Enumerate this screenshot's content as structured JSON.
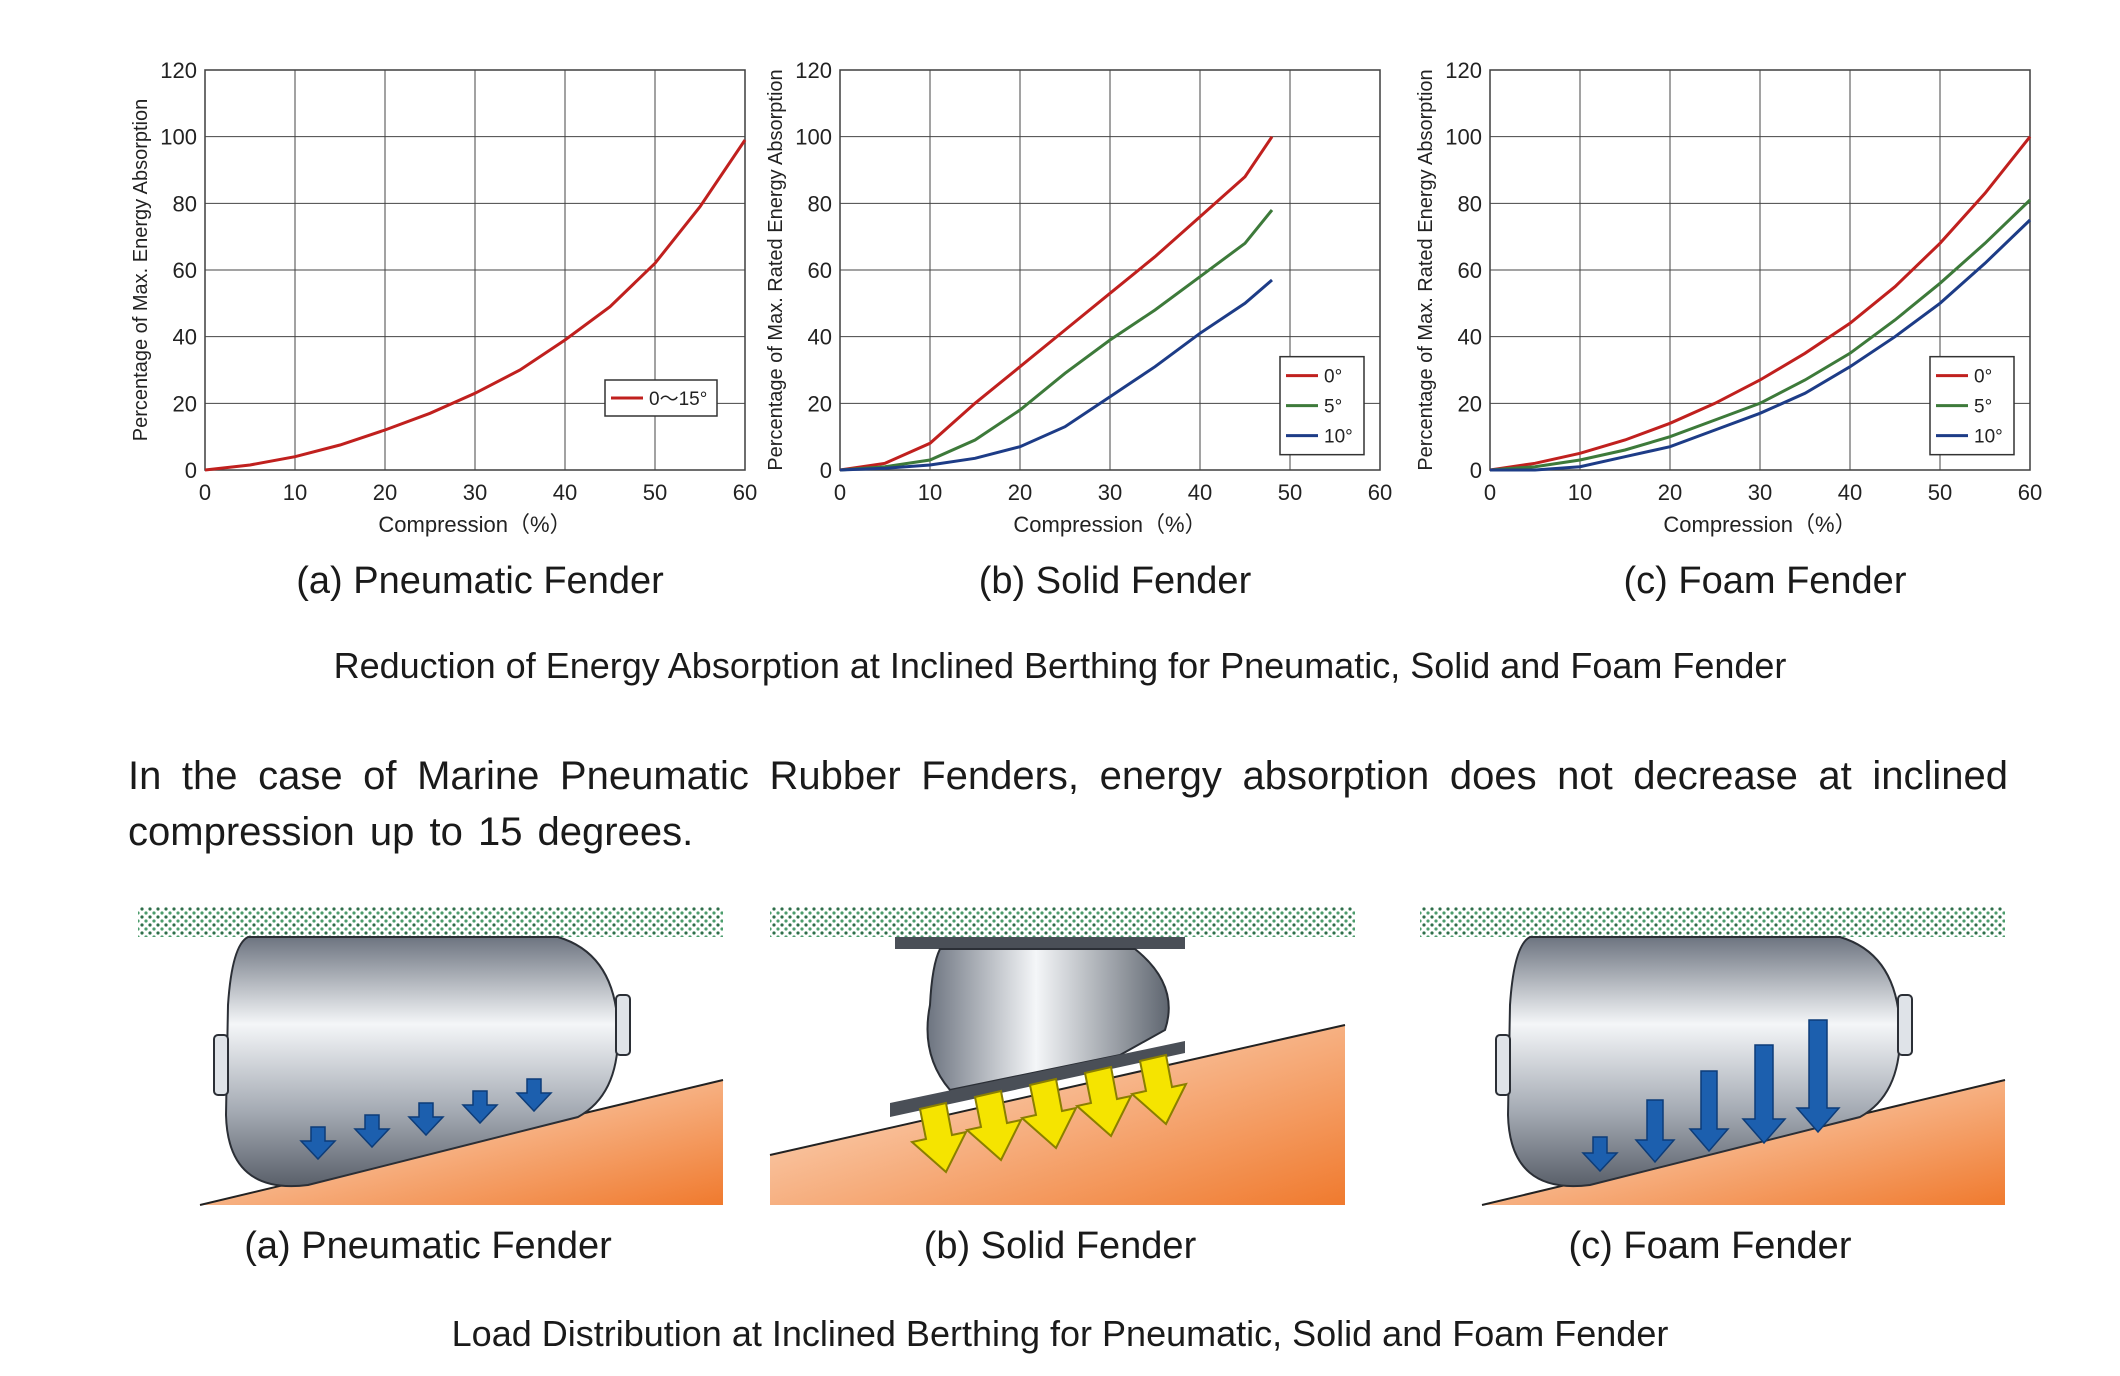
{
  "figure_top": {
    "title": "Reduction of Energy Absorption at Inclined Berthing for Pneumatic, Solid and Foam Fender"
  },
  "chart_data": [
    {
      "type": "line",
      "caption": "(a) Pneumatic Fender",
      "xlabel": "Compression（%）",
      "ylabel": "Percentage of Max. Energy Absorption",
      "xlim": [
        0,
        60
      ],
      "ylim": [
        0,
        120
      ],
      "xticks": [
        "0",
        "10",
        "20",
        "30",
        "40",
        "50",
        "60"
      ],
      "yticks": [
        "0",
        "20",
        "40",
        "60",
        "80",
        "100",
        "120"
      ],
      "grid": true,
      "legend": "right",
      "series": [
        {
          "name": "0～15°",
          "color": "#c0201e",
          "points": [
            [
              0,
              0
            ],
            [
              5,
              1.5
            ],
            [
              10,
              4
            ],
            [
              15,
              7.5
            ],
            [
              20,
              12
            ],
            [
              25,
              17
            ],
            [
              30,
              23
            ],
            [
              35,
              30
            ],
            [
              40,
              39
            ],
            [
              45,
              49
            ],
            [
              50,
              62
            ],
            [
              55,
              79
            ],
            [
              60,
              99
            ]
          ]
        }
      ]
    },
    {
      "type": "line",
      "caption": "(b) Solid Fender",
      "xlabel": "Compression（%）",
      "ylabel": "Percentage of Max. Rated Energy Absorption",
      "xlim": [
        0,
        60
      ],
      "ylim": [
        0,
        120
      ],
      "xticks": [
        "0",
        "10",
        "20",
        "30",
        "40",
        "50",
        "60"
      ],
      "yticks": [
        "0",
        "20",
        "40",
        "60",
        "80",
        "100",
        "120"
      ],
      "grid": true,
      "legend": "right",
      "series": [
        {
          "name": "0°",
          "color": "#c0201e",
          "points": [
            [
              0,
              0
            ],
            [
              5,
              2
            ],
            [
              10,
              8
            ],
            [
              15,
              20
            ],
            [
              20,
              31
            ],
            [
              25,
              42
            ],
            [
              30,
              53
            ],
            [
              35,
              64
            ],
            [
              40,
              76
            ],
            [
              45,
              88
            ],
            [
              48,
              100
            ]
          ]
        },
        {
          "name": "5°",
          "color": "#3d7a3a",
          "points": [
            [
              0,
              0
            ],
            [
              5,
              1
            ],
            [
              10,
              3
            ],
            [
              15,
              9
            ],
            [
              20,
              18
            ],
            [
              25,
              29
            ],
            [
              30,
              39
            ],
            [
              35,
              48
            ],
            [
              40,
              58
            ],
            [
              45,
              68
            ],
            [
              48,
              78
            ]
          ]
        },
        {
          "name": "10°",
          "color": "#1d3c87",
          "points": [
            [
              0,
              0
            ],
            [
              5,
              0.5
            ],
            [
              10,
              1.5
            ],
            [
              15,
              3.5
            ],
            [
              20,
              7
            ],
            [
              25,
              13
            ],
            [
              30,
              22
            ],
            [
              35,
              31
            ],
            [
              40,
              41
            ],
            [
              45,
              50
            ],
            [
              48,
              57
            ]
          ]
        }
      ]
    },
    {
      "type": "line",
      "caption": "(c) Foam Fender",
      "xlabel": "Compression（%）",
      "ylabel": "Percentage of Max. Rated Energy Absorption",
      "xlim": [
        0,
        60
      ],
      "ylim": [
        0,
        120
      ],
      "xticks": [
        "0",
        "10",
        "20",
        "30",
        "40",
        "50",
        "60"
      ],
      "yticks": [
        "0",
        "20",
        "40",
        "60",
        "80",
        "100",
        "120"
      ],
      "grid": true,
      "legend": "right",
      "series": [
        {
          "name": "0°",
          "color": "#c0201e",
          "points": [
            [
              0,
              0
            ],
            [
              5,
              2
            ],
            [
              10,
              5
            ],
            [
              15,
              9
            ],
            [
              20,
              14
            ],
            [
              25,
              20
            ],
            [
              30,
              27
            ],
            [
              35,
              35
            ],
            [
              40,
              44
            ],
            [
              45,
              55
            ],
            [
              50,
              68
            ],
            [
              55,
              83
            ],
            [
              60,
              100
            ]
          ]
        },
        {
          "name": "5°",
          "color": "#3d7a3a",
          "points": [
            [
              0,
              0
            ],
            [
              5,
              1
            ],
            [
              10,
              3
            ],
            [
              15,
              6
            ],
            [
              20,
              10
            ],
            [
              25,
              15
            ],
            [
              30,
              20
            ],
            [
              35,
              27
            ],
            [
              40,
              35
            ],
            [
              45,
              45
            ],
            [
              50,
              56
            ],
            [
              55,
              68
            ],
            [
              60,
              81
            ]
          ]
        },
        {
          "name": "10°",
          "color": "#1d3c87",
          "points": [
            [
              0,
              0
            ],
            [
              5,
              0
            ],
            [
              10,
              1
            ],
            [
              15,
              4
            ],
            [
              20,
              7
            ],
            [
              25,
              12
            ],
            [
              30,
              17
            ],
            [
              35,
              23
            ],
            [
              40,
              31
            ],
            [
              45,
              40
            ],
            [
              50,
              50
            ],
            [
              55,
              62
            ],
            [
              60,
              75
            ]
          ]
        }
      ]
    }
  ],
  "paragraph": "In the case of  Marine  Pneumatic Rubber Fenders, energy absorption does not decrease at inclined compression up to 15 degrees.",
  "figure_bottom": {
    "title": "Load Distribution at Inclined Berthing for Pneumatic, Solid and Foam Fender",
    "captions": [
      "(a) Pneumatic Fender",
      "(b) Solid Fender",
      "(c) Foam Fender"
    ],
    "colors": {
      "pneumatic_arrow": "#1c5fae",
      "solid_arrow": "#f5e400",
      "quay": "#4c9d6d",
      "hull": "#f0a06a"
    }
  }
}
